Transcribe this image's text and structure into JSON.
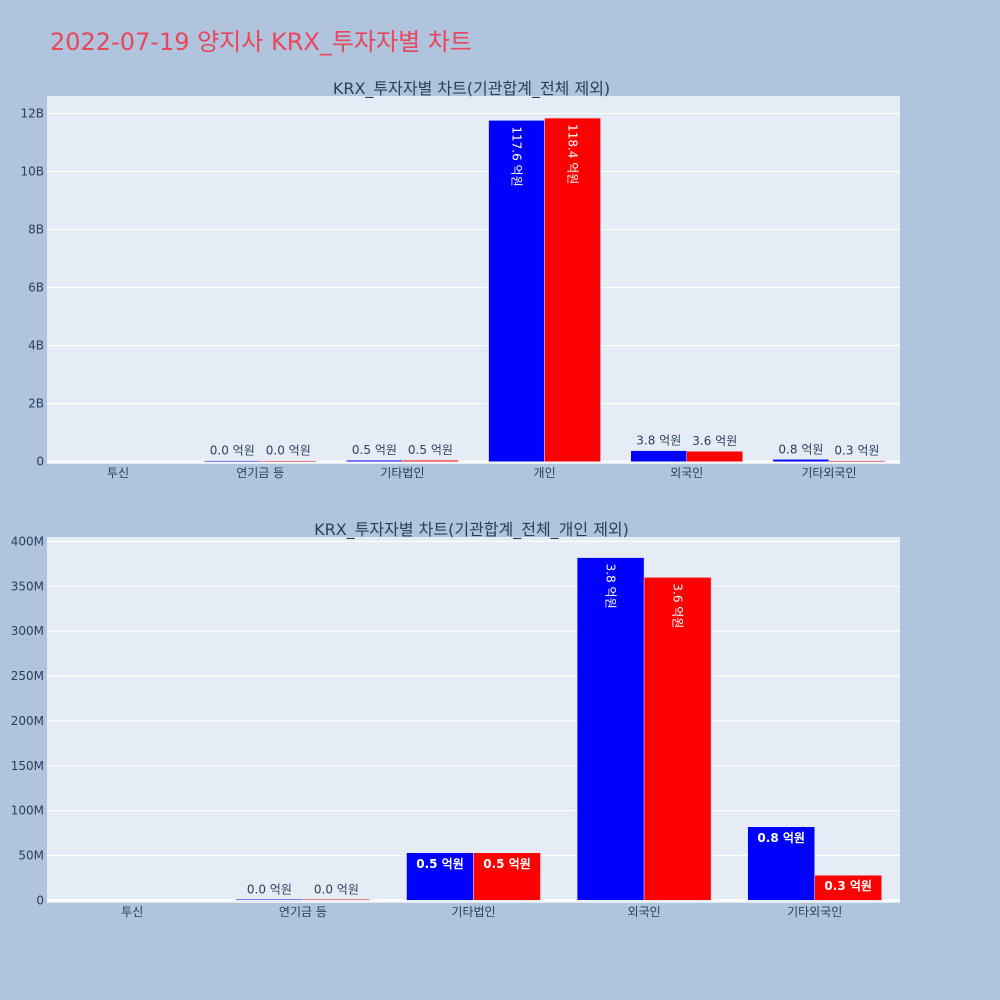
{
  "page": {
    "title": "2022-07-19 양지사 KRX_투자자별 차트"
  },
  "colors": {
    "buy": "#0000ff",
    "sell": "#ff0000",
    "plot_bg": "#e5ecf6",
    "page_bg": "#b0c4de",
    "title": "#e8475c"
  },
  "chart_data": [
    {
      "type": "bar",
      "title": "KRX_투자자별 차트(기관합계_전체 제외)",
      "categories": [
        "투신",
        "연기금 등",
        "기타법인",
        "개인",
        "외국인",
        "기타외국인"
      ],
      "series": [
        {
          "values": [
            null,
            1000000,
            50000000,
            11760000000,
            380000000,
            80000000
          ],
          "labels": [
            "",
            "0.0 억원",
            "0.5 억원",
            "117.6 억원",
            "3.8 억원",
            "0.8 억원"
          ]
        },
        {
          "values": [
            null,
            1000000,
            50000000,
            11840000000,
            360000000,
            30000000
          ],
          "labels": [
            "",
            "0.0 억원",
            "0.5 억원",
            "118.4 억원",
            "3.6 억원",
            "0.3 억원"
          ]
        }
      ],
      "yticks": [
        0,
        2000000000,
        4000000000,
        6000000000,
        8000000000,
        10000000000,
        12000000000
      ],
      "ytick_labels": [
        "0",
        "2B",
        "4B",
        "6B",
        "8B",
        "10B",
        "12B"
      ],
      "ylim": [
        -80000000,
        12600000000
      ],
      "grid": true
    },
    {
      "type": "bar",
      "title": "KRX_투자자별 차트(기관합계_전체_개인 제외)",
      "categories": [
        "투신",
        "연기금 등",
        "기타법인",
        "외국인",
        "기타외국인"
      ],
      "series": [
        {
          "values": [
            null,
            1000000,
            53000000,
            382000000,
            82000000
          ],
          "labels": [
            "",
            "0.0 억원",
            "0.5 억원",
            "3.8 억원",
            "0.8 억원"
          ]
        },
        {
          "values": [
            null,
            1000000,
            53000000,
            360000000,
            28000000
          ],
          "labels": [
            "",
            "0.0 억원",
            "0.5 억원",
            "3.6 억원",
            "0.3 억원"
          ]
        }
      ],
      "yticks": [
        0,
        50000000,
        100000000,
        150000000,
        200000000,
        250000000,
        300000000,
        350000000,
        400000000
      ],
      "ytick_labels": [
        "0",
        "50M",
        "100M",
        "150M",
        "200M",
        "250M",
        "300M",
        "350M",
        "400M"
      ],
      "ylim": [
        -3000000,
        405000000
      ],
      "grid": true
    }
  ]
}
